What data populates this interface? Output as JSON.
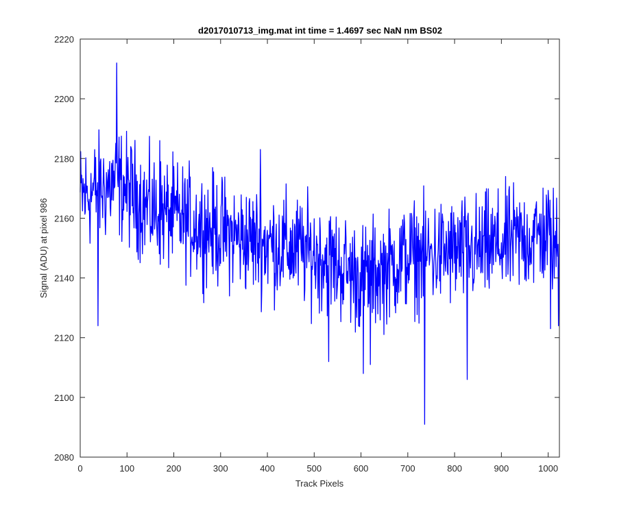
{
  "chart_data": {
    "type": "line",
    "title": "d2017010713_img.mat int time = 1.4697 sec  NaN nm BS02",
    "xlabel": "Track Pixels",
    "ylabel": "Signal (ADU) at pixel 986",
    "xlim": [
      0,
      1024
    ],
    "ylim": [
      2080,
      2220
    ],
    "xticks": [
      0,
      100,
      200,
      300,
      400,
      500,
      600,
      700,
      800,
      900,
      1000
    ],
    "yticks": [
      2080,
      2100,
      2120,
      2140,
      2160,
      2180,
      2200,
      2220
    ],
    "grid": false,
    "series": [
      {
        "name": "signal",
        "color": "#0000ff",
        "noise_amplitude": 9,
        "trend_x": [
          0,
          80,
          150,
          250,
          350,
          450,
          520,
          600,
          640,
          700,
          760,
          850,
          900,
          1000,
          1024
        ],
        "trend_y": [
          2167,
          2172,
          2163,
          2158,
          2153,
          2150,
          2147,
          2140,
          2142,
          2147,
          2148,
          2149,
          2151,
          2155,
          2148
        ],
        "spikes": [
          {
            "x": 78,
            "y": 2212
          },
          {
            "x": 38,
            "y": 2124
          },
          {
            "x": 170,
            "y": 2186
          },
          {
            "x": 385,
            "y": 2183
          },
          {
            "x": 531,
            "y": 2112
          },
          {
            "x": 605,
            "y": 2108
          },
          {
            "x": 620,
            "y": 2111
          },
          {
            "x": 736,
            "y": 2091
          },
          {
            "x": 827,
            "y": 2106
          },
          {
            "x": 1005,
            "y": 2123
          },
          {
            "x": 1022,
            "y": 2124
          }
        ]
      }
    ]
  }
}
